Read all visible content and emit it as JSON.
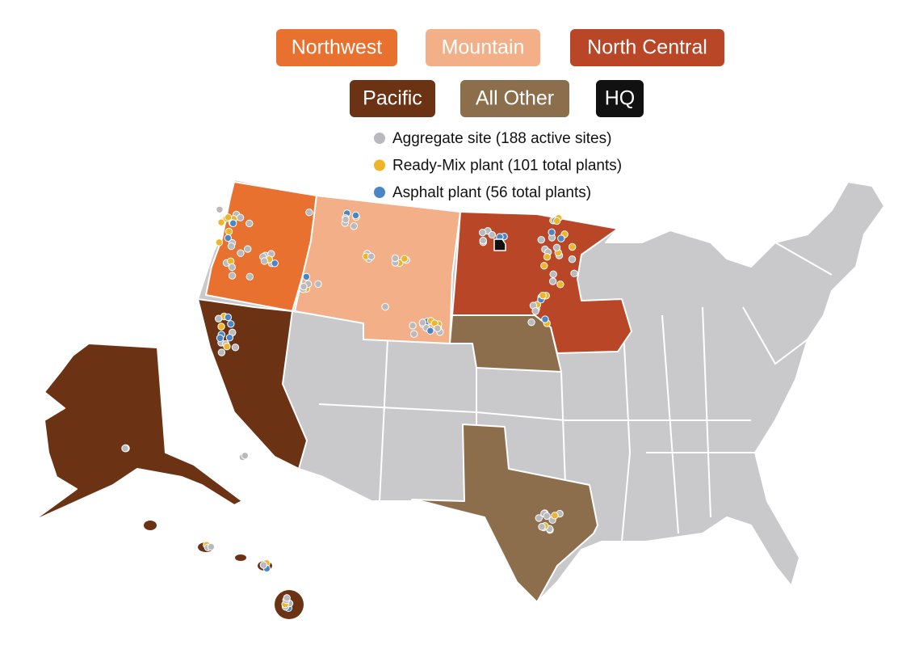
{
  "regions": [
    {
      "label": "Northwest",
      "color": "#e8712f"
    },
    {
      "label": "Mountain",
      "color": "#f3b088"
    },
    {
      "label": "North Central",
      "color": "#b94626"
    },
    {
      "label": "Pacific",
      "color": "#6b3214"
    },
    {
      "label": "All Other",
      "color": "#8d6e4c"
    },
    {
      "label": "HQ",
      "color": "#111111"
    }
  ],
  "legend": [
    {
      "label": "Aggregate site (188 active sites)",
      "color": "#b9b9be"
    },
    {
      "label": "Ready-Mix plant (101 total plants)",
      "color": "#f0b429"
    },
    {
      "label": "Asphalt plant (56 total plants)",
      "color": "#4a86c5"
    }
  ]
}
